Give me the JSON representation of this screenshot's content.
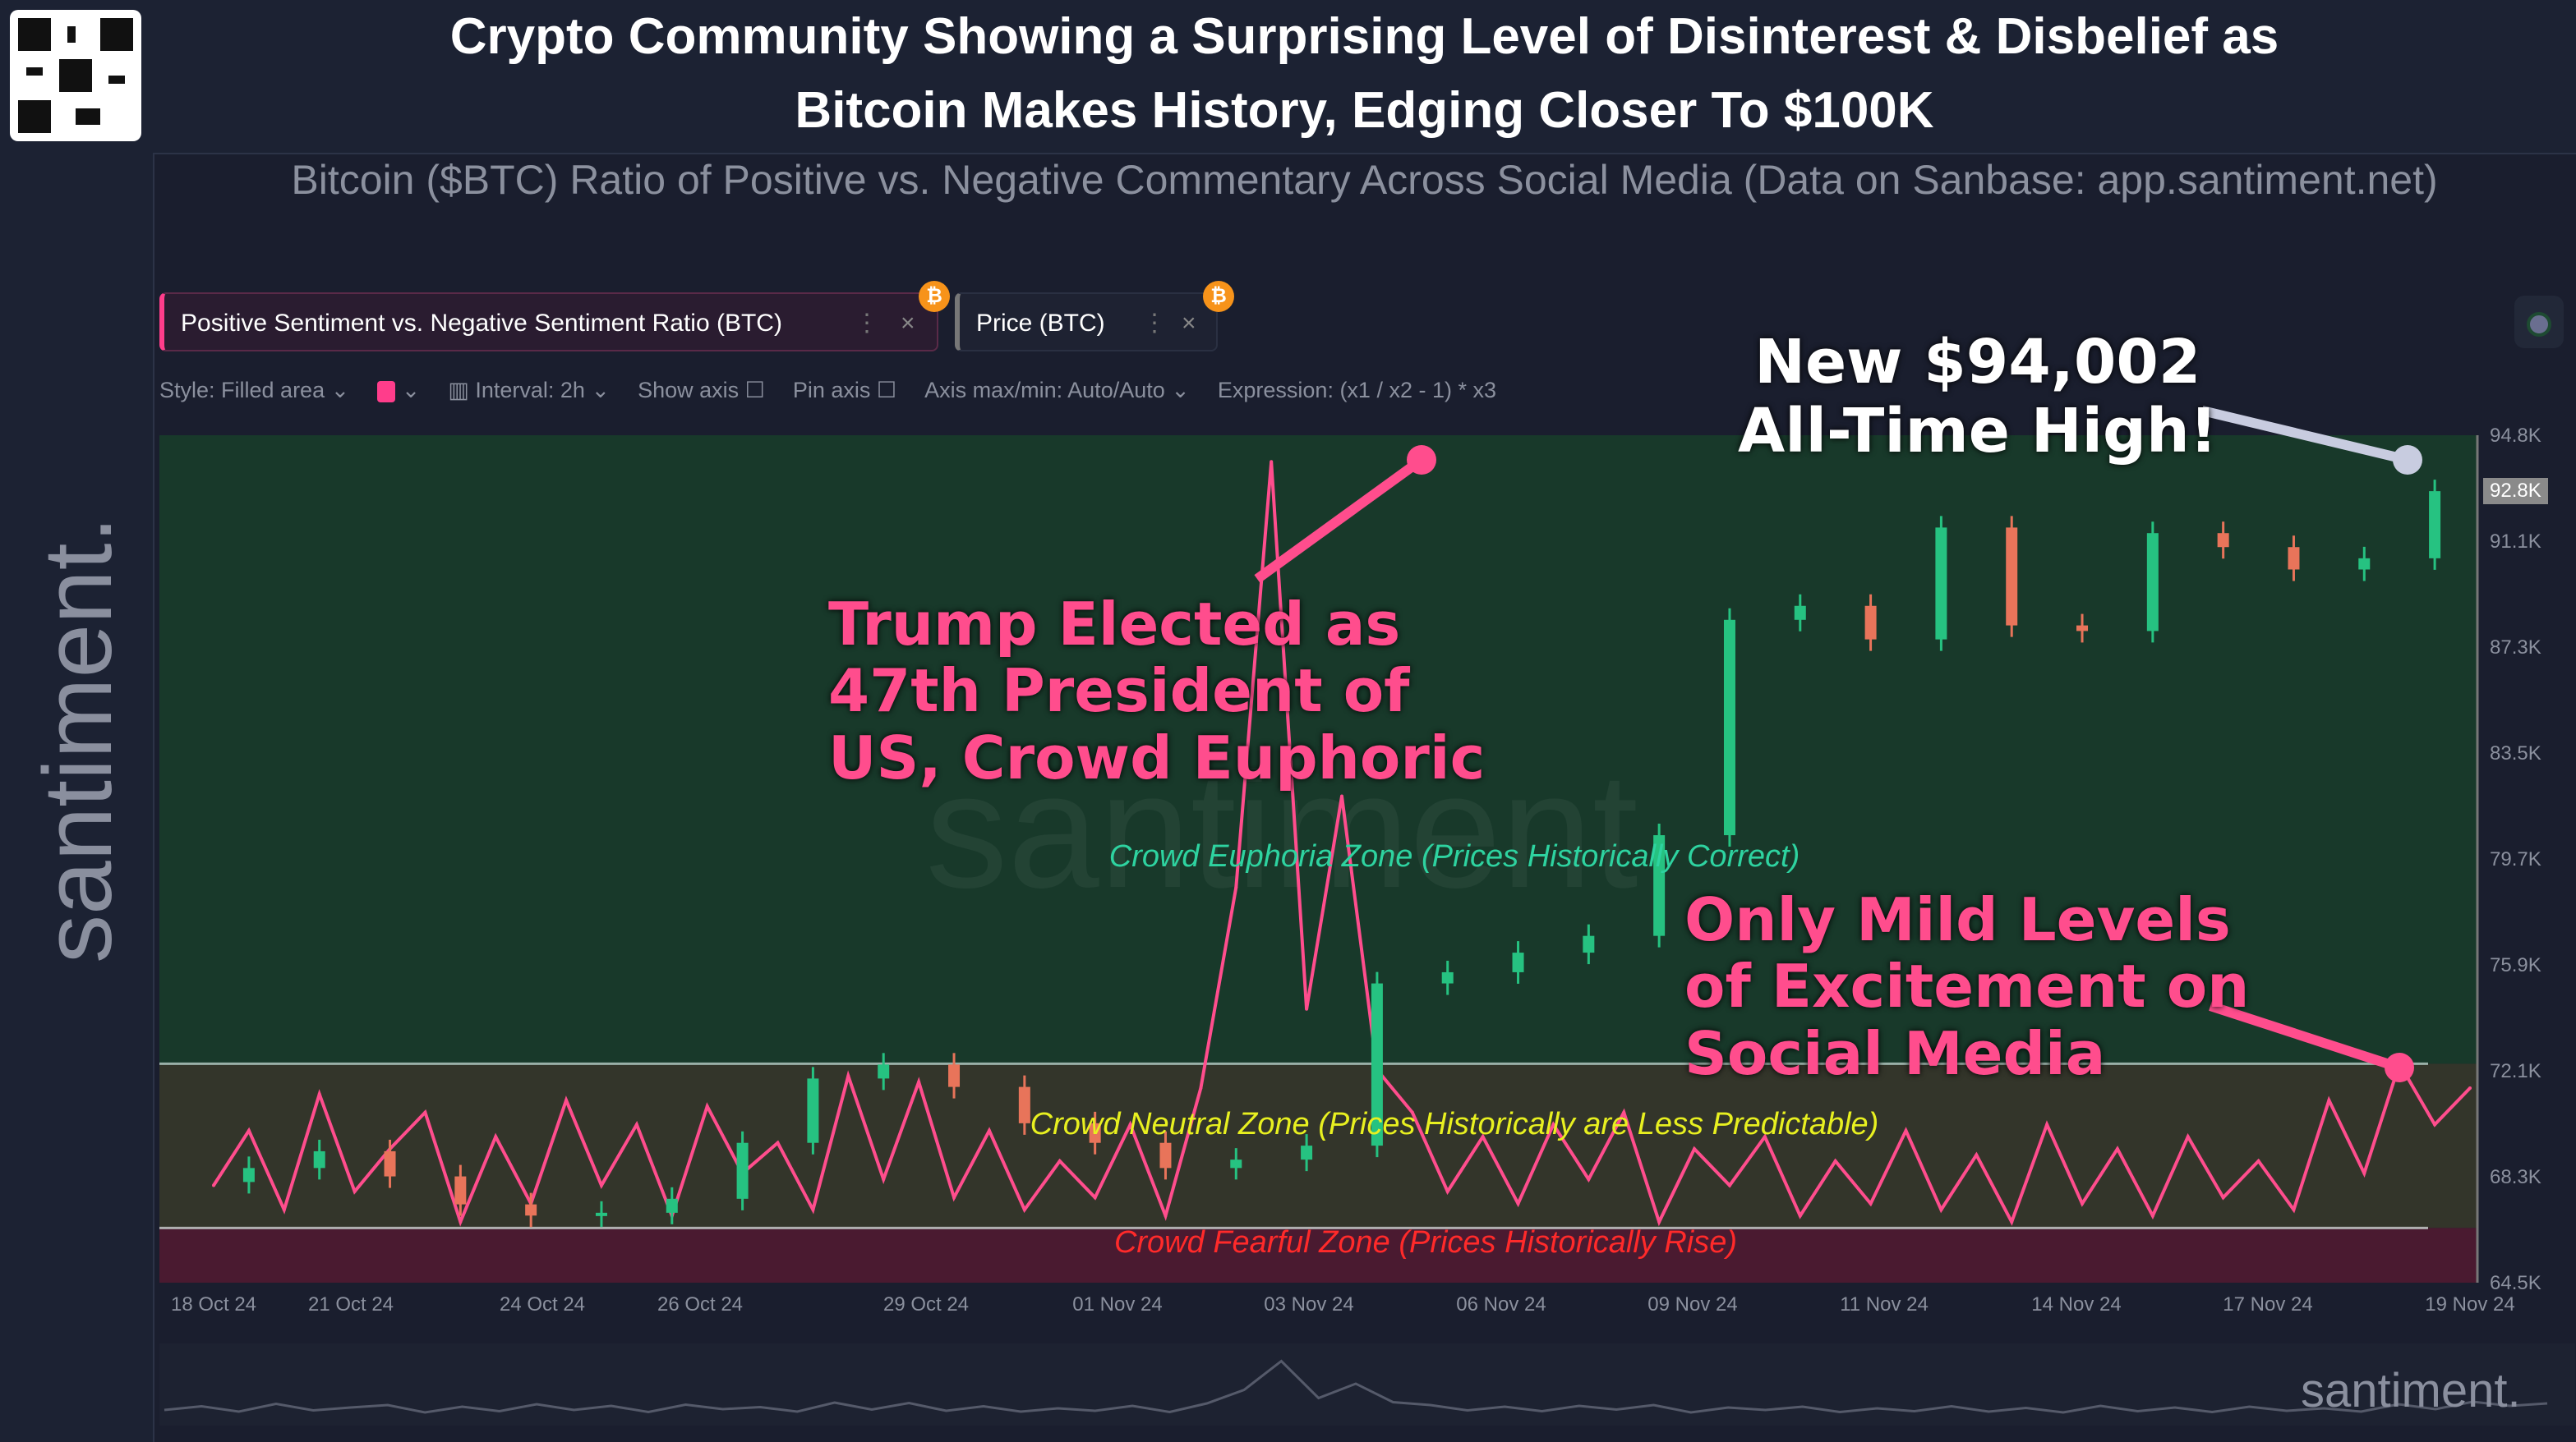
{
  "header": {
    "title_line1": "Crypto Community Showing a Surprising Level of Disinterest & Disbelief as",
    "title_line2": "Bitcoin Makes History, Edging Closer To $100K",
    "subtitle": "Bitcoin ($BTC) Ratio of Positive vs. Negative Commentary Across Social Media (Data on Sanbase: app.santiment.net)"
  },
  "brand": {
    "logo": "santiment.",
    "watermark": "santiment"
  },
  "tabs": [
    {
      "label": "Positive Sentiment vs. Negative Sentiment Ratio (BTC)",
      "menu": "⋮",
      "close": "×",
      "badge": "₿"
    },
    {
      "label": "Price (BTC)",
      "menu": "⋮",
      "close": "×",
      "badge": "₿"
    }
  ],
  "toolbar": {
    "style": "Style: Filled area",
    "color": "#ff3d8b",
    "interval": "Interval: 2h",
    "show_axis": "Show axis",
    "pin_axis": "Pin axis",
    "axis_maxmin": "Axis max/min: Auto/Auto",
    "expression": "Expression: (x1 / x2 - 1) * x3"
  },
  "annotations": {
    "ath_line1": "New $94,002",
    "ath_line2": "All-Time High!",
    "trump": [
      "Trump Elected as",
      "47th President of",
      "US, Crowd Euphoric"
    ],
    "mild": [
      "Only Mild Levels",
      "of Excitement on",
      "Social Media"
    ],
    "euphoria_zone": "Crowd Euphoria Zone (Prices Historically Correct)",
    "neutral_zone": "Crowd Neutral Zone (Prices Historically are Less Predictable)",
    "fearful_zone": "Crowd Fearful Zone (Prices Historically Rise)"
  },
  "chart_data": {
    "type": "line",
    "x_ticks": [
      "18 Oct 24",
      "21 Oct 24",
      "24 Oct 24",
      "26 Oct 24",
      "29 Oct 24",
      "01 Nov 24",
      "03 Nov 24",
      "06 Nov 24",
      "09 Nov 24",
      "11 Nov 24",
      "14 Nov 24",
      "17 Nov 24",
      "19 Nov 24"
    ],
    "y_ticks": [
      "94.8K",
      "91.1K",
      "87.3K",
      "83.5K",
      "79.7K",
      "75.9K",
      "72.1K",
      "68.3K",
      "64.5K"
    ],
    "ylim": [
      64500,
      94800
    ],
    "current_price_label": "92.8K",
    "colors": {
      "price_up": "#26c281",
      "price_down": "#e8745a",
      "sentiment": "#ff4d8d",
      "euphoria": "#18392a",
      "neutral": "#33352a",
      "fearful": "#4a1a30"
    },
    "price_series": {
      "name": "Price (BTC)",
      "x": [
        0,
        1,
        2,
        3,
        4,
        5,
        6,
        7,
        8,
        9,
        10,
        11,
        12,
        13,
        14,
        15,
        16,
        17,
        18,
        19,
        20,
        21,
        22,
        23,
        24,
        25,
        26,
        27,
        28,
        29,
        30,
        31,
        32
      ],
      "values": [
        68100,
        68600,
        69200,
        68300,
        67300,
        66900,
        67000,
        67500,
        69500,
        71800,
        72300,
        71500,
        70200,
        69500,
        68600,
        68900,
        69400,
        75200,
        75600,
        76300,
        76900,
        80500,
        88200,
        88700,
        87500,
        91500,
        88000,
        87800,
        91300,
        90800,
        90000,
        90400,
        92800
      ]
    },
    "sentiment_series": {
      "name": "Positive Sentiment vs. Negative Sentiment Ratio (BTC)",
      "x": [
        0,
        0.5,
        1,
        1.5,
        2,
        2.5,
        3,
        3.5,
        4,
        4.5,
        5,
        5.5,
        6,
        6.5,
        7,
        7.5,
        8,
        8.5,
        9,
        9.5,
        10,
        10.5,
        11,
        11.5,
        12,
        12.5,
        13,
        13.5,
        14,
        14.5,
        15,
        15.5,
        16,
        16.5,
        17,
        17.5,
        18,
        18.5,
        19,
        19.5,
        20,
        20.5,
        21,
        21.5,
        22,
        22.5,
        23,
        23.5,
        24,
        24.5,
        25,
        25.5,
        26,
        26.5,
        27,
        27.5,
        28,
        28.5,
        29,
        29.5,
        30,
        30.5,
        31,
        31.5,
        32
      ],
      "values": [
        1.6,
        2.5,
        1.2,
        3.1,
        1.5,
        2.2,
        2.8,
        1.0,
        2.4,
        1.3,
        3.0,
        1.6,
        2.6,
        1.1,
        2.9,
        1.8,
        2.3,
        1.2,
        3.4,
        1.7,
        3.3,
        1.4,
        2.5,
        1.2,
        2.0,
        1.4,
        2.6,
        1.1,
        3.2,
        6.5,
        13.5,
        4.5,
        8.0,
        3.5,
        2.8,
        1.5,
        2.4,
        1.3,
        2.6,
        1.7,
        2.8,
        1.0,
        2.2,
        1.6,
        2.4,
        1.1,
        2.0,
        1.3,
        2.5,
        1.2,
        2.1,
        1.0,
        2.6,
        1.3,
        2.2,
        1.1,
        2.4,
        1.4,
        2.0,
        1.2,
        3.0,
        1.8,
        3.6,
        2.6,
        3.2
      ]
    },
    "sentiment_ylim": [
      0,
      13.8
    ],
    "zones": {
      "euphoria_min": 3.6,
      "fearful_max": 0.9
    }
  }
}
